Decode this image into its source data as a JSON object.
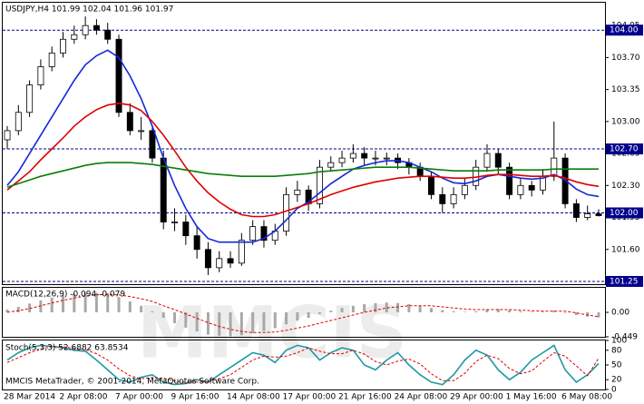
{
  "watermark": "MMCIS",
  "chart_data": [
    {
      "type": "candlestick",
      "title": "USDJPY,H4  101.99 102.04 101.96 101.97",
      "categories": [
        "28 Mar 2014",
        null,
        null,
        null,
        null,
        "2 Apr 08:00",
        null,
        null,
        null,
        null,
        "7 Apr 00:00",
        null,
        null,
        null,
        null,
        "9 Apr 16:00",
        null,
        null,
        null,
        null,
        "14 Apr 08:00",
        null,
        null,
        null,
        null,
        "17 Apr 00:00",
        null,
        null,
        null,
        null,
        "21 Apr 16:00",
        null,
        null,
        null,
        null,
        "24 Apr 08:00",
        null,
        null,
        null,
        null,
        "29 Apr 00:00",
        null,
        null,
        null,
        null,
        "1 May 16:00",
        null,
        null,
        null,
        null,
        "6 May 08:00",
        null,
        null,
        null
      ],
      "open": [
        102.8,
        102.9,
        103.1,
        103.4,
        103.6,
        103.75,
        103.9,
        103.95,
        104.05,
        104.0,
        103.9,
        103.1,
        102.9,
        102.9,
        102.6,
        101.9,
        101.9,
        101.75,
        101.6,
        101.4,
        101.5,
        101.45,
        101.7,
        101.85,
        101.7,
        101.8,
        102.2,
        102.25,
        102.1,
        102.5,
        102.55,
        102.6,
        102.65,
        102.6,
        102.6,
        102.6,
        102.55,
        102.5,
        102.4,
        102.2,
        102.1,
        102.2,
        102.3,
        102.5,
        102.65,
        102.5,
        102.2,
        102.3,
        102.25,
        102.4,
        102.6,
        102.1,
        101.95,
        101.99
      ],
      "high": [
        102.95,
        103.18,
        103.45,
        103.68,
        103.82,
        103.98,
        104.05,
        104.15,
        104.12,
        104.08,
        103.95,
        103.2,
        103.05,
        102.95,
        102.68,
        102.05,
        101.98,
        101.85,
        101.68,
        101.58,
        101.58,
        101.78,
        101.92,
        101.92,
        101.88,
        102.28,
        102.35,
        102.3,
        102.58,
        102.62,
        102.68,
        102.75,
        102.72,
        102.68,
        102.66,
        102.65,
        102.6,
        102.55,
        102.45,
        102.28,
        102.28,
        102.38,
        102.58,
        102.75,
        102.7,
        102.55,
        102.38,
        102.35,
        102.48,
        103.0,
        102.65,
        102.15,
        102.08,
        102.04
      ],
      "low": [
        102.7,
        102.85,
        103.05,
        103.35,
        103.55,
        103.7,
        103.85,
        103.9,
        103.95,
        103.85,
        103.05,
        102.85,
        102.8,
        102.55,
        101.82,
        101.8,
        101.65,
        101.5,
        101.32,
        101.35,
        101.4,
        101.42,
        101.65,
        101.62,
        101.65,
        101.75,
        102.12,
        102.02,
        102.05,
        102.45,
        102.5,
        102.55,
        102.52,
        102.52,
        102.52,
        102.48,
        102.42,
        102.35,
        102.15,
        102.0,
        102.05,
        102.15,
        102.25,
        102.45,
        102.42,
        102.15,
        102.15,
        102.18,
        102.2,
        102.35,
        102.05,
        101.9,
        101.92,
        101.96
      ],
      "close": [
        102.9,
        103.1,
        103.4,
        103.6,
        103.75,
        103.9,
        103.95,
        104.05,
        104.0,
        103.9,
        103.1,
        102.9,
        102.9,
        102.6,
        101.9,
        101.9,
        101.75,
        101.6,
        101.4,
        101.5,
        101.45,
        101.7,
        101.85,
        101.7,
        101.8,
        102.2,
        102.25,
        102.1,
        102.5,
        102.55,
        102.6,
        102.65,
        102.6,
        102.6,
        102.6,
        102.55,
        102.5,
        102.4,
        102.2,
        102.1,
        102.2,
        102.3,
        102.5,
        102.65,
        102.5,
        102.2,
        102.3,
        102.25,
        102.4,
        102.6,
        102.1,
        101.95,
        101.99,
        101.97
      ],
      "series": [
        {
          "color": "#1428d8",
          "values": [
            102.3,
            102.45,
            102.65,
            102.85,
            103.05,
            103.25,
            103.45,
            103.62,
            103.72,
            103.78,
            103.7,
            103.5,
            103.25,
            102.95,
            102.6,
            102.3,
            102.05,
            101.85,
            101.72,
            101.68,
            101.68,
            101.68,
            101.68,
            101.72,
            101.8,
            101.92,
            102.05,
            102.12,
            102.22,
            102.32,
            102.4,
            102.48,
            102.52,
            102.55,
            102.57,
            102.57,
            102.55,
            102.5,
            102.45,
            102.38,
            102.33,
            102.32,
            102.35,
            102.4,
            102.42,
            102.4,
            102.38,
            102.37,
            102.38,
            102.42,
            102.36,
            102.26,
            102.2,
            102.18
          ]
        },
        {
          "color": "#e00000",
          "values": [
            102.25,
            102.35,
            102.45,
            102.58,
            102.7,
            102.82,
            102.95,
            103.05,
            103.13,
            103.18,
            103.2,
            103.18,
            103.12,
            103.0,
            102.85,
            102.68,
            102.5,
            102.35,
            102.22,
            102.12,
            102.04,
            101.98,
            101.96,
            101.96,
            101.98,
            102.02,
            102.06,
            102.1,
            102.15,
            102.2,
            102.24,
            102.28,
            102.31,
            102.34,
            102.36,
            102.38,
            102.39,
            102.4,
            102.4,
            102.39,
            102.38,
            102.38,
            102.39,
            102.41,
            102.42,
            102.42,
            102.41,
            102.4,
            102.4,
            102.41,
            102.38,
            102.34,
            102.31,
            102.29
          ]
        },
        {
          "color": "#0a7d0a",
          "values": [
            102.28,
            102.32,
            102.36,
            102.4,
            102.43,
            102.46,
            102.49,
            102.52,
            102.54,
            102.55,
            102.55,
            102.55,
            102.54,
            102.53,
            102.51,
            102.49,
            102.47,
            102.45,
            102.43,
            102.42,
            102.41,
            102.4,
            102.4,
            102.4,
            102.4,
            102.41,
            102.42,
            102.43,
            102.45,
            102.46,
            102.47,
            102.48,
            102.49,
            102.5,
            102.5,
            102.5,
            102.5,
            102.49,
            102.48,
            102.47,
            102.46,
            102.46,
            102.46,
            102.46,
            102.47,
            102.47,
            102.47,
            102.47,
            102.47,
            102.48,
            102.48,
            102.48,
            102.48,
            102.48
          ]
        }
      ],
      "levels": [
        {
          "value": 104.0,
          "label": "104.00"
        },
        {
          "value": 102.7,
          "label": "102.70"
        },
        {
          "value": 102.0,
          "label": "102.00"
        },
        {
          "value": 101.25,
          "label": "101.25"
        }
      ],
      "level_color": "#00008b",
      "ylim": [
        101.22,
        104.3
      ],
      "yticks": [
        104.05,
        {
          "value": 103.7,
          "label": "103.70"
        },
        103.35,
        {
          "value": 103.0,
          "label": "103.00"
        },
        102.65,
        {
          "value": 102.3,
          "label": "102.30"
        },
        101.95,
        {
          "value": 101.6,
          "label": "101.60"
        }
      ]
    },
    {
      "type": "macd",
      "title": "MACD(12,26,9) -0.094 -0.079",
      "values": [
        0.05,
        0.1,
        0.16,
        0.22,
        0.27,
        0.31,
        0.34,
        0.36,
        0.36,
        0.35,
        0.28,
        0.2,
        0.12,
        0.02,
        -0.1,
        -0.2,
        -0.28,
        -0.35,
        -0.41,
        -0.43,
        -0.44,
        -0.42,
        -0.38,
        -0.34,
        -0.29,
        -0.22,
        -0.15,
        -0.1,
        -0.03,
        0.03,
        0.08,
        0.12,
        0.15,
        0.17,
        0.18,
        0.17,
        0.15,
        0.12,
        0.08,
        0.04,
        0.02,
        0.01,
        0.02,
        0.05,
        0.06,
        0.04,
        0.02,
        0.01,
        0.01,
        0.03,
        -0.01,
        -0.05,
        -0.08,
        -0.094
      ],
      "color": "#a8a8a8",
      "signal": {
        "color": "#e00000",
        "values": [
          0.0,
          0.03,
          0.07,
          0.12,
          0.17,
          0.22,
          0.26,
          0.3,
          0.32,
          0.33,
          0.32,
          0.29,
          0.25,
          0.2,
          0.12,
          0.05,
          -0.03,
          -0.11,
          -0.19,
          -0.26,
          -0.31,
          -0.35,
          -0.37,
          -0.37,
          -0.36,
          -0.33,
          -0.29,
          -0.25,
          -0.2,
          -0.15,
          -0.1,
          -0.05,
          0.0,
          0.04,
          0.08,
          0.1,
          0.12,
          0.12,
          0.12,
          0.1,
          0.08,
          0.06,
          0.05,
          0.05,
          0.05,
          0.05,
          0.04,
          0.03,
          0.02,
          0.02,
          0.02,
          -0.01,
          -0.05,
          -0.079
        ]
      },
      "ylim": [
        -0.449,
        0.45
      ],
      "yticks": [
        {
          "value": 0,
          "label": "0.00"
        },
        -0.449
      ]
    },
    {
      "type": "stochastic",
      "title": "Stoch(5,3,3) 52.6882 63.8534",
      "annotation": "MMCIS MetaTrader, © 2001-2014, MetaQuotes Software Corp.",
      "series": [
        {
          "color": "#1e9aa0",
          "values": [
            60,
            75,
            85,
            90,
            88,
            85,
            80,
            78,
            60,
            40,
            20,
            15,
            25,
            30,
            15,
            10,
            12,
            20,
            15,
            30,
            45,
            60,
            75,
            70,
            55,
            80,
            90,
            85,
            60,
            75,
            85,
            80,
            50,
            40,
            60,
            75,
            50,
            30,
            15,
            10,
            30,
            60,
            80,
            70,
            40,
            20,
            35,
            60,
            75,
            90,
            40,
            15,
            30,
            52.6882
          ]
        },
        {
          "color": "#e00000",
          "values": [
            55,
            65,
            75,
            83,
            87,
            87,
            84,
            81,
            73,
            60,
            42,
            28,
            22,
            24,
            23,
            18,
            14,
            15,
            16,
            22,
            30,
            45,
            60,
            68,
            66,
            68,
            75,
            85,
            78,
            73,
            73,
            80,
            72,
            57,
            50,
            58,
            62,
            52,
            32,
            18,
            18,
            33,
            57,
            70,
            63,
            43,
            32,
            38,
            57,
            75,
            68,
            48,
            28,
            63.8534
          ]
        }
      ],
      "ylim": [
        0,
        100
      ],
      "yticks": [
        100,
        80,
        50,
        20,
        0
      ]
    }
  ]
}
